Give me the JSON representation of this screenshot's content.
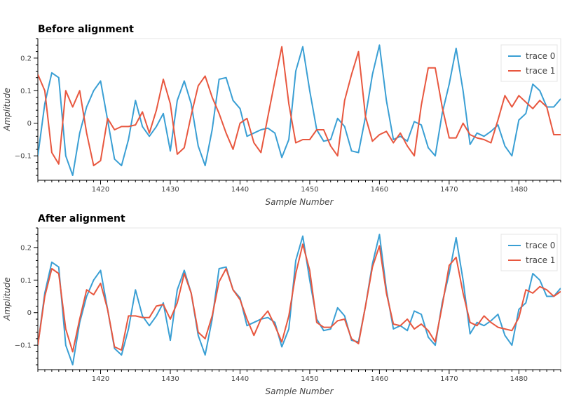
{
  "chart_data": [
    {
      "type": "line",
      "title": "Before alignment",
      "xlabel": "Sample Number",
      "ylabel": "Amplitude",
      "xlim": [
        1411,
        1486
      ],
      "ylim": [
        -0.175,
        0.26
      ],
      "xticks": [
        1420,
        1430,
        1440,
        1450,
        1460,
        1470,
        1480
      ],
      "yticks": [
        -0.1,
        0,
        0.1,
        0.2
      ],
      "legend_position": "top-right",
      "series": [
        {
          "name": "trace 0",
          "color": "#3a9fd4",
          "x": [
            1411,
            1412,
            1413,
            1414,
            1415,
            1416,
            1417,
            1418,
            1419,
            1420,
            1421,
            1422,
            1423,
            1424,
            1425,
            1426,
            1427,
            1428,
            1429,
            1430,
            1431,
            1432,
            1433,
            1434,
            1435,
            1436,
            1437,
            1438,
            1439,
            1440,
            1441,
            1442,
            1443,
            1444,
            1445,
            1446,
            1447,
            1448,
            1449,
            1450,
            1451,
            1452,
            1453,
            1454,
            1455,
            1456,
            1457,
            1458,
            1459,
            1460,
            1461,
            1462,
            1463,
            1464,
            1465,
            1466,
            1467,
            1468,
            1469,
            1470,
            1471,
            1472,
            1473,
            1474,
            1475,
            1476,
            1477,
            1478,
            1479,
            1480,
            1481,
            1482,
            1483,
            1484,
            1485,
            1486
          ],
          "y": [
            -0.1,
            0.06,
            0.155,
            0.14,
            -0.1,
            -0.16,
            -0.03,
            0.05,
            0.1,
            0.13,
            0.01,
            -0.11,
            -0.13,
            -0.05,
            0.07,
            -0.01,
            -0.04,
            -0.01,
            0.03,
            -0.085,
            0.07,
            0.13,
            0.06,
            -0.07,
            -0.13,
            -0.02,
            0.135,
            0.14,
            0.07,
            0.045,
            -0.04,
            -0.03,
            -0.02,
            -0.015,
            -0.03,
            -0.105,
            -0.05,
            0.16,
            0.235,
            0.1,
            -0.02,
            -0.055,
            -0.05,
            0.015,
            -0.01,
            -0.085,
            -0.09,
            0.02,
            0.15,
            0.24,
            0.07,
            -0.05,
            -0.04,
            -0.055,
            0.005,
            -0.005,
            -0.075,
            -0.1,
            0.03,
            0.12,
            0.23,
            0.1,
            -0.065,
            -0.03,
            -0.04,
            -0.025,
            -0.005,
            -0.07,
            -0.1,
            0.01,
            0.03,
            0.12,
            0.1,
            0.05,
            0.05,
            0.075
          ]
        },
        {
          "name": "trace 1",
          "color": "#e8573f",
          "x": [
            1411,
            1412,
            1413,
            1414,
            1415,
            1416,
            1417,
            1418,
            1419,
            1420,
            1421,
            1422,
            1423,
            1424,
            1425,
            1426,
            1427,
            1428,
            1429,
            1430,
            1431,
            1432,
            1433,
            1434,
            1435,
            1436,
            1437,
            1438,
            1439,
            1440,
            1441,
            1442,
            1443,
            1444,
            1445,
            1446,
            1447,
            1448,
            1449,
            1450,
            1451,
            1452,
            1453,
            1454,
            1455,
            1456,
            1457,
            1458,
            1459,
            1460,
            1461,
            1462,
            1463,
            1464,
            1465,
            1466,
            1467,
            1468,
            1469,
            1470,
            1471,
            1472,
            1473,
            1474,
            1475,
            1476,
            1477,
            1478,
            1479,
            1480,
            1481,
            1482,
            1483,
            1484,
            1485,
            1486
          ],
          "y": [
            0.15,
            0.1,
            -0.09,
            -0.125,
            0.1,
            0.05,
            0.1,
            -0.03,
            -0.13,
            -0.115,
            0.015,
            -0.02,
            -0.01,
            -0.01,
            -0.005,
            0.035,
            -0.03,
            0.04,
            0.135,
            0.06,
            -0.095,
            -0.075,
            0.025,
            0.115,
            0.145,
            0.08,
            0.03,
            -0.03,
            -0.08,
            0,
            0.015,
            -0.06,
            -0.09,
            0.02,
            0.13,
            0.235,
            0.06,
            -0.06,
            -0.05,
            -0.05,
            -0.02,
            -0.02,
            -0.07,
            -0.1,
            0.07,
            0.15,
            0.22,
            0.02,
            -0.055,
            -0.035,
            -0.025,
            -0.06,
            -0.03,
            -0.07,
            -0.1,
            0.055,
            0.17,
            0.17,
            0.05,
            -0.045,
            -0.045,
            0,
            -0.035,
            -0.045,
            -0.05,
            -0.06,
            0.01,
            0.085,
            0.05,
            0.085,
            0.065,
            0.045,
            0.07,
            0.05,
            -0.035,
            -0.035
          ]
        }
      ]
    },
    {
      "type": "line",
      "title": "After alignment",
      "xlabel": "Sample Number",
      "ylabel": "Amplitude",
      "xlim": [
        1411,
        1486
      ],
      "ylim": [
        -0.175,
        0.26
      ],
      "xticks": [
        1420,
        1430,
        1440,
        1450,
        1460,
        1470,
        1480
      ],
      "yticks": [
        -0.1,
        0,
        0.1,
        0.2
      ],
      "legend_position": "top-right",
      "series": [
        {
          "name": "trace 0",
          "color": "#3a9fd4",
          "x": [
            1411,
            1412,
            1413,
            1414,
            1415,
            1416,
            1417,
            1418,
            1419,
            1420,
            1421,
            1422,
            1423,
            1424,
            1425,
            1426,
            1427,
            1428,
            1429,
            1430,
            1431,
            1432,
            1433,
            1434,
            1435,
            1436,
            1437,
            1438,
            1439,
            1440,
            1441,
            1442,
            1443,
            1444,
            1445,
            1446,
            1447,
            1448,
            1449,
            1450,
            1451,
            1452,
            1453,
            1454,
            1455,
            1456,
            1457,
            1458,
            1459,
            1460,
            1461,
            1462,
            1463,
            1464,
            1465,
            1466,
            1467,
            1468,
            1469,
            1470,
            1471,
            1472,
            1473,
            1474,
            1475,
            1476,
            1477,
            1478,
            1479,
            1480,
            1481,
            1482,
            1483,
            1484,
            1485,
            1486
          ],
          "y": [
            -0.1,
            0.06,
            0.155,
            0.14,
            -0.1,
            -0.16,
            -0.03,
            0.05,
            0.1,
            0.13,
            0.01,
            -0.11,
            -0.13,
            -0.05,
            0.07,
            -0.01,
            -0.04,
            -0.01,
            0.03,
            -0.085,
            0.07,
            0.13,
            0.06,
            -0.07,
            -0.13,
            -0.02,
            0.135,
            0.14,
            0.07,
            0.045,
            -0.04,
            -0.03,
            -0.02,
            -0.015,
            -0.03,
            -0.105,
            -0.05,
            0.16,
            0.235,
            0.1,
            -0.02,
            -0.055,
            -0.05,
            0.015,
            -0.01,
            -0.085,
            -0.09,
            0.02,
            0.15,
            0.24,
            0.07,
            -0.05,
            -0.04,
            -0.055,
            0.005,
            -0.005,
            -0.075,
            -0.1,
            0.03,
            0.12,
            0.23,
            0.1,
            -0.065,
            -0.03,
            -0.04,
            -0.025,
            -0.005,
            -0.07,
            -0.1,
            0.01,
            0.03,
            0.12,
            0.1,
            0.05,
            0.05,
            0.075
          ]
        },
        {
          "name": "trace 1",
          "color": "#e8573f",
          "x": [
            1411,
            1412,
            1413,
            1414,
            1415,
            1416,
            1417,
            1418,
            1419,
            1420,
            1421,
            1422,
            1423,
            1424,
            1425,
            1426,
            1427,
            1428,
            1429,
            1430,
            1431,
            1432,
            1433,
            1434,
            1435,
            1436,
            1437,
            1438,
            1439,
            1440,
            1441,
            1442,
            1443,
            1444,
            1445,
            1446,
            1447,
            1448,
            1449,
            1450,
            1451,
            1452,
            1453,
            1454,
            1455,
            1456,
            1457,
            1458,
            1459,
            1460,
            1461,
            1462,
            1463,
            1464,
            1465,
            1466,
            1467,
            1468,
            1469,
            1470,
            1471,
            1472,
            1473,
            1474,
            1475,
            1476,
            1477,
            1478,
            1479,
            1480,
            1481,
            1482,
            1483,
            1484,
            1485,
            1486
          ],
          "y": [
            -0.1,
            0.05,
            0.135,
            0.12,
            -0.05,
            -0.12,
            -0.02,
            0.07,
            0.055,
            0.09,
            0.01,
            -0.105,
            -0.115,
            -0.01,
            -0.01,
            -0.015,
            -0.015,
            0.02,
            0.025,
            -0.02,
            0.03,
            0.12,
            0.06,
            -0.06,
            -0.08,
            -0.01,
            0.095,
            0.135,
            0.07,
            0.04,
            -0.02,
            -0.07,
            -0.02,
            0.005,
            -0.04,
            -0.09,
            -0.01,
            0.12,
            0.21,
            0.13,
            -0.03,
            -0.045,
            -0.045,
            -0.025,
            -0.02,
            -0.08,
            -0.095,
            0.02,
            0.14,
            0.205,
            0.06,
            -0.035,
            -0.04,
            -0.02,
            -0.05,
            -0.035,
            -0.055,
            -0.09,
            0.02,
            0.145,
            0.17,
            0.06,
            -0.03,
            -0.04,
            -0.01,
            -0.03,
            -0.045,
            -0.05,
            -0.055,
            -0.015,
            0.07,
            0.06,
            0.08,
            0.07,
            0.05,
            0.065
          ]
        }
      ]
    }
  ]
}
